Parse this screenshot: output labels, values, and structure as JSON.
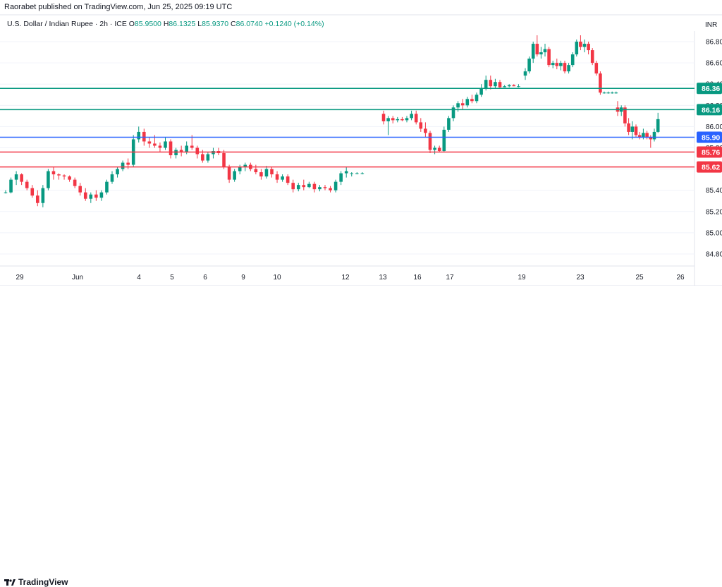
{
  "header": {
    "publisher": "Raorabet published on TradingView.com, Jun 25, 2025 09:19 UTC"
  },
  "legend": {
    "symbol": "U.S. Dollar / Indian Rupee · 2h · ICE",
    "o_label": "O",
    "o_value": "85.9500",
    "h_label": "H",
    "h_value": "86.1325",
    "l_label": "L",
    "l_value": "85.9370",
    "c_label": "C",
    "c_value": "86.0740",
    "change": "+0.1240 (+0.14%)"
  },
  "axis": {
    "currency": "INR"
  },
  "footer": {
    "brand": "TradingView"
  },
  "colors": {
    "up": "#089981",
    "down": "#f23645",
    "blue_line": "#2962ff",
    "green_line": "#089981",
    "red_line": "#f23645",
    "grid": "#f0f3fa"
  },
  "chart_data": {
    "type": "candlestick",
    "ylim": [
      84.7,
      86.9
    ],
    "y_ticks": [
      "84.800",
      "85.000",
      "85.200",
      "85.400",
      "85.600",
      "85.800",
      "86.000",
      "86.200",
      "86.400",
      "86.600",
      "86.800"
    ],
    "x_ticks": [
      "29",
      "Jun",
      "4",
      "5",
      "6",
      "9",
      "10",
      "12",
      "13",
      "16",
      "17",
      "19",
      "23",
      "25",
      "26"
    ],
    "horizontal_levels": [
      {
        "value": 86.36,
        "label": "86.36",
        "color": "green"
      },
      {
        "value": 86.16,
        "label": "86.16",
        "color": "green"
      },
      {
        "value": 85.9,
        "label": "85.90",
        "color": "blue"
      },
      {
        "value": 85.76,
        "label": "85.76",
        "color": "red"
      },
      {
        "value": 85.62,
        "label": "85.62",
        "color": "red"
      }
    ],
    "candles": [
      [
        85.38,
        85.4,
        85.37,
        85.38
      ],
      [
        85.38,
        85.52,
        85.37,
        85.5
      ],
      [
        85.5,
        85.58,
        85.45,
        85.55
      ],
      [
        85.55,
        85.56,
        85.45,
        85.48
      ],
      [
        85.48,
        85.5,
        85.4,
        85.42
      ],
      [
        85.42,
        85.45,
        85.33,
        85.35
      ],
      [
        85.35,
        85.4,
        85.25,
        85.28
      ],
      [
        85.28,
        85.45,
        85.24,
        85.42
      ],
      [
        85.42,
        85.6,
        85.4,
        85.58
      ],
      [
        85.58,
        85.62,
        85.5,
        85.55
      ],
      [
        85.55,
        85.56,
        85.5,
        85.54
      ],
      [
        85.54,
        85.55,
        85.5,
        85.53
      ],
      [
        85.53,
        85.54,
        85.48,
        85.5
      ],
      [
        85.5,
        85.52,
        85.42,
        85.44
      ],
      [
        85.44,
        85.47,
        85.35,
        85.38
      ],
      [
        85.38,
        85.42,
        85.3,
        85.32
      ],
      [
        85.32,
        85.38,
        85.28,
        85.36
      ],
      [
        85.36,
        85.4,
        85.3,
        85.33
      ],
      [
        85.33,
        85.4,
        85.3,
        85.38
      ],
      [
        85.38,
        85.5,
        85.36,
        85.48
      ],
      [
        85.48,
        85.58,
        85.46,
        85.55
      ],
      [
        85.55,
        85.62,
        85.52,
        85.6
      ],
      [
        85.6,
        85.68,
        85.58,
        85.66
      ],
      [
        85.66,
        85.7,
        85.6,
        85.64
      ],
      [
        85.64,
        85.92,
        85.62,
        85.88
      ],
      [
        85.88,
        86.0,
        85.85,
        85.95
      ],
      [
        85.95,
        85.98,
        85.82,
        85.86
      ],
      [
        85.86,
        85.9,
        85.8,
        85.84
      ],
      [
        85.84,
        85.92,
        85.8,
        85.82
      ],
      [
        85.82,
        85.85,
        85.76,
        85.8
      ],
      [
        85.8,
        85.9,
        85.78,
        85.86
      ],
      [
        85.86,
        85.88,
        85.7,
        85.73
      ],
      [
        85.73,
        85.8,
        85.7,
        85.78
      ],
      [
        85.78,
        85.82,
        85.72,
        85.76
      ],
      [
        85.76,
        85.86,
        85.74,
        85.82
      ],
      [
        85.82,
        85.92,
        85.78,
        85.8
      ],
      [
        85.8,
        85.82,
        85.7,
        85.74
      ],
      [
        85.74,
        85.78,
        85.66,
        85.68
      ],
      [
        85.68,
        85.76,
        85.66,
        85.74
      ],
      [
        85.74,
        85.8,
        85.7,
        85.77
      ],
      [
        85.77,
        85.8,
        85.73,
        85.75
      ],
      [
        85.75,
        85.78,
        85.6,
        85.62
      ],
      [
        85.62,
        85.64,
        85.47,
        85.5
      ],
      [
        85.5,
        85.6,
        85.48,
        85.58
      ],
      [
        85.58,
        85.64,
        85.55,
        85.62
      ],
      [
        85.62,
        85.66,
        85.58,
        85.64
      ],
      [
        85.64,
        85.66,
        85.58,
        85.6
      ],
      [
        85.6,
        85.64,
        85.55,
        85.57
      ],
      [
        85.57,
        85.6,
        85.5,
        85.53
      ],
      [
        85.53,
        85.63,
        85.51,
        85.6
      ],
      [
        85.6,
        85.62,
        85.52,
        85.55
      ],
      [
        85.55,
        85.58,
        85.47,
        85.5
      ],
      [
        85.5,
        85.55,
        85.48,
        85.53
      ],
      [
        85.53,
        85.55,
        85.45,
        85.47
      ],
      [
        85.47,
        85.5,
        85.38,
        85.41
      ],
      [
        85.41,
        85.47,
        85.39,
        85.45
      ],
      [
        85.45,
        85.5,
        85.4,
        85.43
      ],
      [
        85.43,
        85.48,
        85.42,
        85.46
      ],
      [
        85.46,
        85.48,
        85.38,
        85.41
      ],
      [
        85.41,
        85.45,
        85.39,
        85.43
      ],
      [
        85.43,
        85.45,
        85.4,
        85.42
      ],
      [
        85.42,
        85.44,
        85.38,
        85.4
      ],
      [
        85.4,
        85.5,
        85.38,
        85.48
      ],
      [
        85.48,
        85.58,
        85.45,
        85.56
      ],
      [
        85.56,
        85.62,
        85.52,
        85.58
      ],
      [
        85.56,
        85.57,
        85.53,
        85.56
      ],
      [
        85.56,
        85.57,
        85.55,
        85.56
      ],
      [
        85.56,
        85.57,
        85.55,
        85.56
      ],
      [
        86.12,
        86.15,
        86.02,
        86.05
      ],
      [
        86.05,
        86.1,
        85.92,
        86.08
      ],
      [
        86.08,
        86.1,
        86.03,
        86.06
      ],
      [
        86.06,
        86.09,
        86.04,
        86.07
      ],
      [
        86.07,
        86.09,
        86.05,
        86.06
      ],
      [
        86.06,
        86.1,
        86.04,
        86.08
      ],
      [
        86.08,
        86.15,
        86.06,
        86.12
      ],
      [
        86.12,
        86.15,
        86.02,
        86.04
      ],
      [
        86.04,
        86.08,
        85.95,
        85.98
      ],
      [
        85.98,
        86.04,
        85.9,
        85.94
      ],
      [
        85.94,
        85.96,
        85.75,
        85.78
      ],
      [
        85.78,
        85.82,
        85.74,
        85.8
      ],
      [
        85.8,
        85.82,
        85.76,
        85.77
      ],
      [
        85.77,
        86.0,
        85.76,
        85.97
      ],
      [
        85.97,
        86.1,
        85.95,
        86.08
      ],
      [
        86.08,
        86.2,
        86.05,
        86.18
      ],
      [
        86.18,
        86.24,
        86.14,
        86.22
      ],
      [
        86.22,
        86.26,
        86.16,
        86.2
      ],
      [
        86.2,
        86.28,
        86.18,
        86.26
      ],
      [
        86.26,
        86.3,
        86.22,
        86.24
      ],
      [
        86.24,
        86.32,
        86.22,
        86.3
      ],
      [
        86.3,
        86.4,
        86.28,
        86.36
      ],
      [
        86.36,
        86.48,
        86.34,
        86.44
      ],
      [
        86.44,
        86.48,
        86.35,
        86.38
      ],
      [
        86.38,
        86.45,
        86.36,
        86.42
      ],
      [
        86.42,
        86.44,
        86.36,
        86.37
      ],
      [
        86.37,
        86.39,
        86.37,
        86.38
      ],
      [
        86.38,
        86.4,
        86.37,
        86.39
      ],
      [
        86.39,
        86.4,
        86.38,
        86.38
      ],
      [
        86.38,
        86.4,
        86.37,
        86.38
      ],
      [
        86.48,
        86.55,
        86.44,
        86.52
      ],
      [
        86.52,
        86.66,
        86.5,
        86.64
      ],
      [
        86.64,
        86.8,
        86.6,
        86.78
      ],
      [
        86.78,
        86.86,
        86.66,
        86.68
      ],
      [
        86.68,
        86.75,
        86.64,
        86.7
      ],
      [
        86.7,
        86.78,
        86.66,
        86.73
      ],
      [
        86.73,
        86.75,
        86.56,
        86.58
      ],
      [
        86.58,
        86.62,
        86.55,
        86.6
      ],
      [
        86.6,
        86.64,
        86.54,
        86.57
      ],
      [
        86.57,
        86.62,
        86.53,
        86.6
      ],
      [
        86.6,
        86.62,
        86.5,
        86.52
      ],
      [
        86.52,
        86.6,
        86.5,
        86.58
      ],
      [
        86.58,
        86.7,
        86.56,
        86.68
      ],
      [
        86.68,
        86.82,
        86.66,
        86.8
      ],
      [
        86.8,
        86.86,
        86.72,
        86.75
      ],
      [
        86.75,
        86.82,
        86.7,
        86.78
      ],
      [
        86.78,
        86.8,
        86.68,
        86.72
      ],
      [
        86.72,
        86.74,
        86.58,
        86.6
      ],
      [
        86.6,
        86.62,
        86.48,
        86.5
      ],
      [
        86.5,
        86.52,
        86.3,
        86.32
      ],
      [
        86.32,
        86.33,
        86.31,
        86.32
      ],
      [
        86.32,
        86.33,
        86.31,
        86.32
      ],
      [
        86.32,
        86.33,
        86.31,
        86.32
      ],
      [
        86.32,
        86.33,
        86.31,
        86.32
      ],
      [
        86.18,
        86.24,
        86.1,
        86.14
      ],
      [
        86.14,
        86.2,
        86.1,
        86.18
      ],
      [
        86.18,
        86.2,
        86.0,
        86.03
      ],
      [
        86.03,
        86.08,
        85.92,
        85.95
      ],
      [
        85.95,
        86.05,
        85.88,
        86.0
      ],
      [
        86.0,
        86.02,
        85.9,
        85.92
      ],
      [
        85.92,
        85.95,
        85.88,
        85.9
      ],
      [
        85.9,
        85.98,
        85.88,
        85.94
      ],
      [
        85.94,
        85.96,
        85.88,
        85.9
      ],
      [
        85.9,
        85.92,
        85.8,
        85.88
      ],
      [
        85.88,
        85.98,
        85.86,
        85.95
      ],
      [
        85.95,
        86.13,
        85.94,
        86.07
      ]
    ]
  }
}
